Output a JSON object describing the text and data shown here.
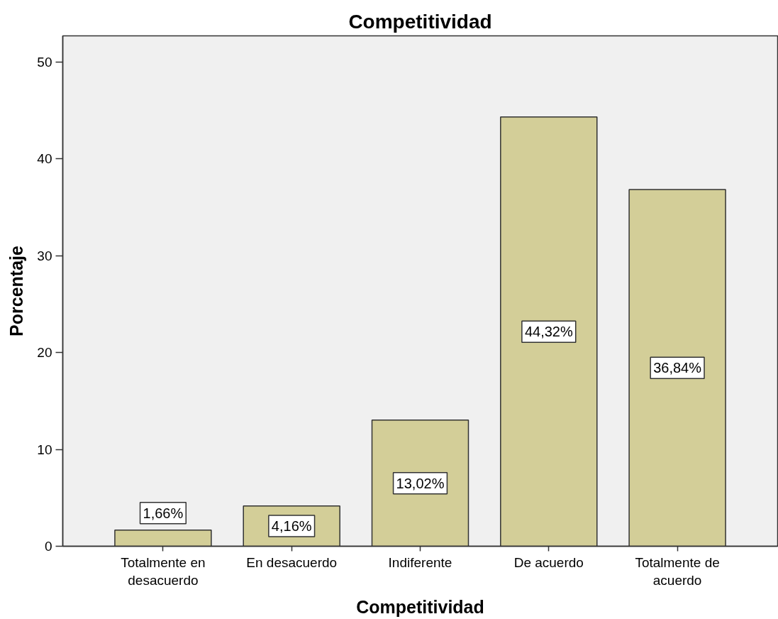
{
  "chart_data": {
    "type": "bar",
    "title": "Competitividad",
    "xlabel": "Competitividad",
    "ylabel": "Porcentaje",
    "categories": [
      "Totalmente en desacuerdo",
      "En desacuerdo",
      "Indiferente",
      "De acuerdo",
      "Totalmente de acuerdo"
    ],
    "values": [
      1.66,
      4.16,
      13.02,
      44.32,
      36.84
    ],
    "value_labels": [
      "1,66%",
      "4,16%",
      "13,02%",
      "44,32%",
      "36,84%"
    ],
    "color": "#d3ce98",
    "ylim": [
      0,
      52.7
    ],
    "yticks": [
      0,
      10,
      20,
      30,
      40,
      50
    ],
    "grid": false
  }
}
